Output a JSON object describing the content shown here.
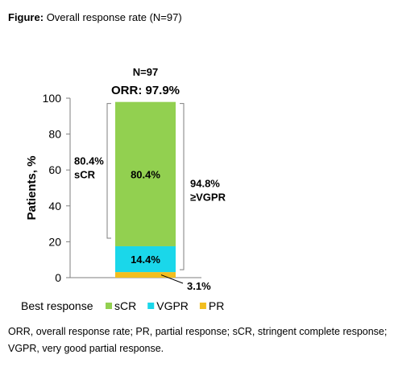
{
  "figure_title": {
    "label": "Figure:",
    "text": "Overall response rate (N=97)"
  },
  "chart_data": {
    "type": "bar",
    "stacked": true,
    "categories": [
      "N=97"
    ],
    "bar_header": "N=97",
    "bar_subheader": "ORR: 97.9%",
    "ylabel": "Patients, %",
    "xlabel": "",
    "ylim": [
      0,
      100
    ],
    "yticks": [
      0,
      20,
      40,
      60,
      80,
      100
    ],
    "series": [
      {
        "name": "PR",
        "value": 3.1,
        "label": "3.1%",
        "color": "#f2be1f"
      },
      {
        "name": "VGPR",
        "value": 14.4,
        "label": "14.4%",
        "color": "#1ad7ea"
      },
      {
        "name": "sCR",
        "value": 80.4,
        "label": "80.4%",
        "color": "#92d050"
      }
    ],
    "brackets": {
      "left": {
        "lines": [
          "80.4%",
          "sCR"
        ]
      },
      "right": {
        "lines": [
          "94.8%",
          "≥VGPR"
        ]
      }
    },
    "legend": {
      "title": "Best response",
      "position": "bottom",
      "items": [
        {
          "name": "sCR",
          "color": "#92d050"
        },
        {
          "name": "VGPR",
          "color": "#1ad7ea"
        },
        {
          "name": "PR",
          "color": "#f2be1f"
        }
      ]
    },
    "grid": false
  },
  "footnote": {
    "text": "ORR, overall response rate; PR, partial response; sCR, stringent complete response; VGPR, very good partial response."
  }
}
